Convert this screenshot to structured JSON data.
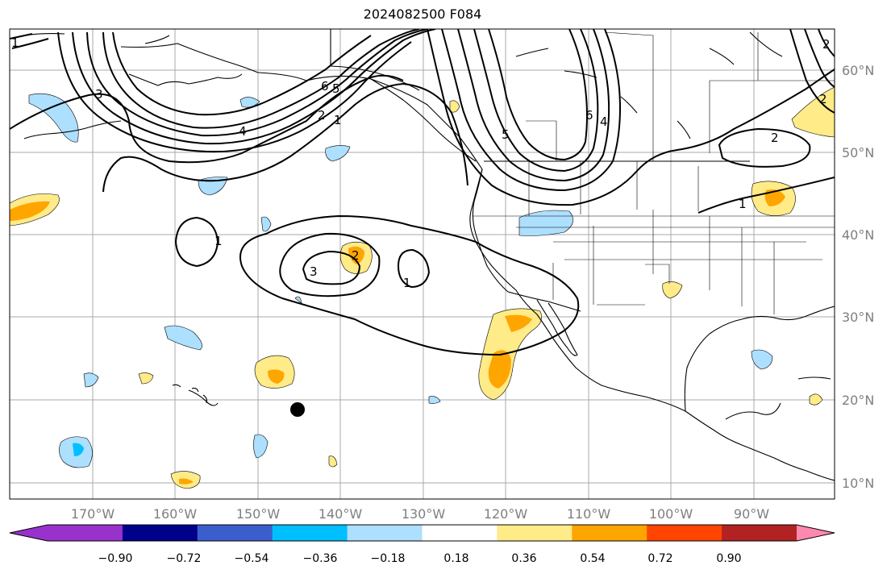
{
  "title": "2024082500 F084",
  "map": {
    "lon_labels": [
      "170°W",
      "160°W",
      "150°W",
      "140°W",
      "130°W",
      "120°W",
      "110°W",
      "100°W",
      "90°W"
    ],
    "lat_labels": [
      "60°N",
      "50°N",
      "40°N",
      "30°N",
      "20°N",
      "10°N"
    ],
    "contour_labels": [
      "6",
      "5",
      "4",
      "3",
      "2",
      "1",
      "2",
      "1",
      "1",
      "2",
      "3",
      "2",
      "1",
      "1",
      "5",
      "4",
      "6",
      "2",
      "2",
      "1"
    ],
    "marker": "storm-center-dot"
  },
  "colorbar": {
    "ticks": [
      "−0.90",
      "−0.72",
      "−0.54",
      "−0.36",
      "−0.18",
      "0.18",
      "0.36",
      "0.54",
      "0.72",
      "0.90"
    ],
    "colors": [
      "#9932CC",
      "#00008B",
      "#3A5FCD",
      "#00BFFF",
      "#ADDFFF",
      "#FFFFFF",
      "#FFEB87",
      "#FFA500",
      "#FF4500",
      "#B22222",
      "#FF88B0"
    ]
  }
}
